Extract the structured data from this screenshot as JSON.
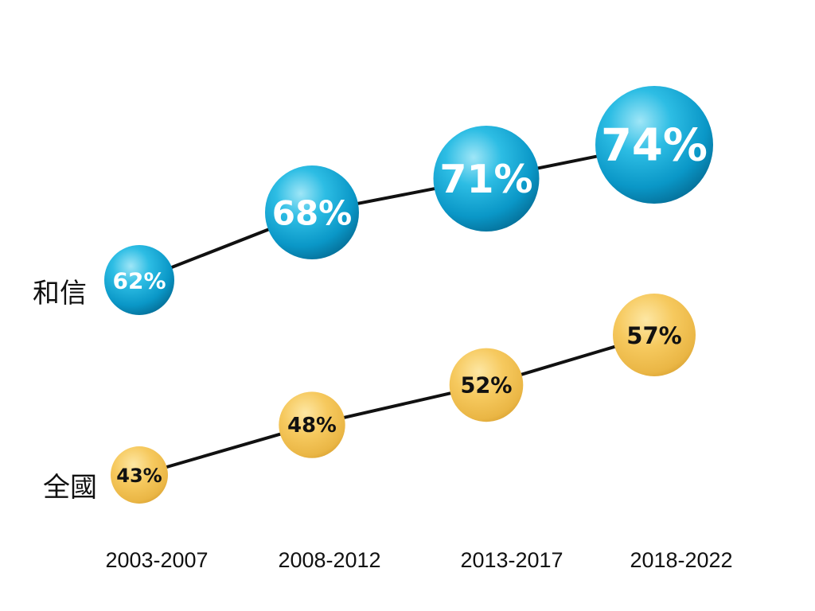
{
  "chart_data": {
    "type": "line",
    "categories": [
      "2003-2007",
      "2008-2012",
      "2013-2017",
      "2018-2022"
    ],
    "series": [
      {
        "name": "和信",
        "values": [
          62,
          68,
          71,
          74
        ],
        "labels": [
          "62%",
          "68%",
          "71%",
          "74%"
        ],
        "color": "#1aa9d6",
        "label_color": "#ffffff"
      },
      {
        "name": "全國",
        "values": [
          43,
          48,
          52,
          57
        ],
        "labels": [
          "43%",
          "48%",
          "52%",
          "57%"
        ],
        "color": "#f5c55a",
        "label_color": "#111111"
      }
    ],
    "unit": "%",
    "line_color": "#111111",
    "grid": false,
    "legend": "none"
  }
}
